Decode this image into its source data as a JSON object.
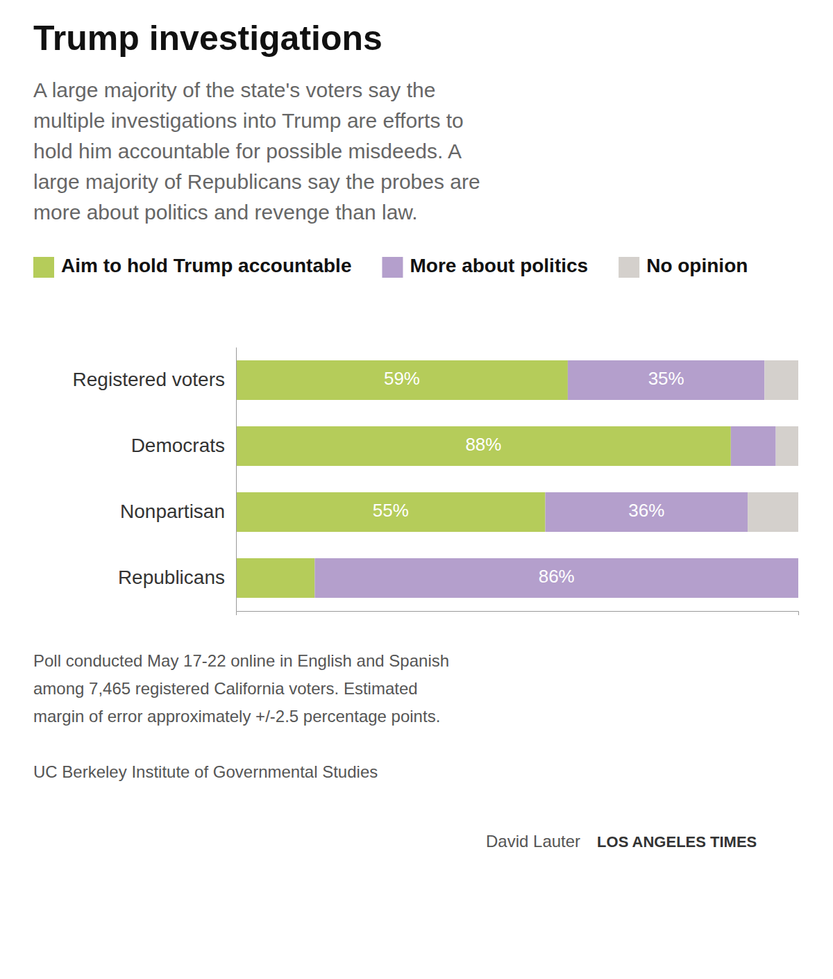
{
  "chart_data": {
    "type": "bar",
    "orientation": "horizontal",
    "stacked": true,
    "title": "Trump investigations",
    "subtitle": [
      "A large majority of the state's voters say the",
      "multiple investigations into Trump are efforts to",
      "hold him accountable for possible misdeeds. A",
      "large majority of Republicans say the probes are",
      "more about politics and revenge than law."
    ],
    "categories": [
      "Registered voters",
      "Democrats",
      "Nonpartisan",
      "Republicans"
    ],
    "series": [
      {
        "name": "Aim to hold Trump accountable",
        "color": "#b5cc5a",
        "values": [
          59,
          88,
          55,
          14
        ],
        "value_labels": [
          "59%",
          "88%",
          "55%",
          null
        ]
      },
      {
        "name": "More about politics",
        "color": "#b49fcc",
        "values": [
          35,
          8,
          36,
          86
        ],
        "value_labels": [
          "35%",
          null,
          "36%",
          "86%"
        ]
      },
      {
        "name": "No opinion",
        "color": "#d4d0cc",
        "values": [
          6,
          4,
          9,
          0
        ]
      }
    ],
    "xlim": [
      0,
      100
    ],
    "data_labels": true,
    "tick_labels": "y",
    "grid": false,
    "legend": "top",
    "annotations": [
      "Poll conducted May 17-22 online in English and Spanish",
      "among 7,465 registered California voters. Estimated",
      "margin of error approximately +/-2.5 percentage points.",
      "UC Berkeley Institute of Governmental Studies",
      "David Lauter",
      "LOS ANGELES TIMES"
    ]
  }
}
